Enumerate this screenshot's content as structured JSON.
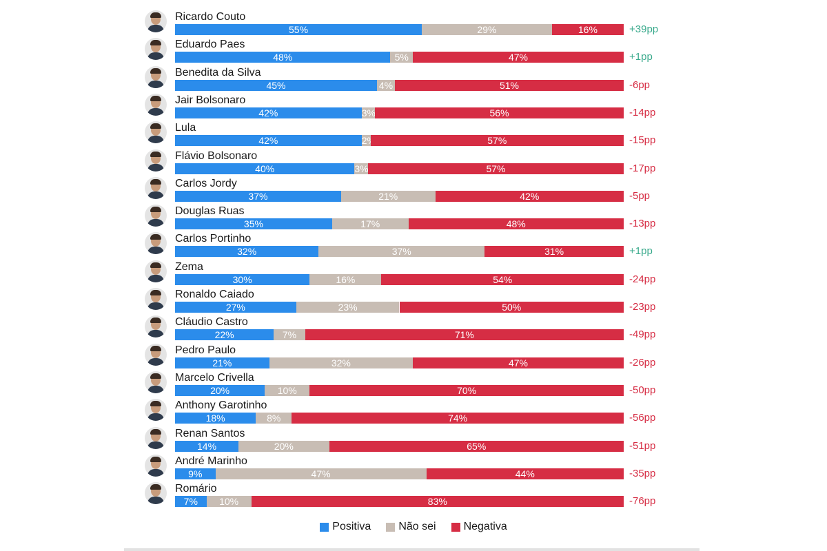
{
  "chart_data": {
    "type": "bar",
    "orientation": "horizontal",
    "stacked": true,
    "series": [
      {
        "name": "Positiva",
        "color": "#2b8ceb"
      },
      {
        "name": "Não sei",
        "color": "#c8bdb4"
      },
      {
        "name": "Negativa",
        "color": "#d62d44"
      }
    ],
    "positive_net_color": "#3aaa8c",
    "negative_net_color": "#d62d44",
    "rows": [
      {
        "name": "Ricardo Couto",
        "pos": 55,
        "neu": 29,
        "neg": 16,
        "net": "+39pp"
      },
      {
        "name": "Eduardo Paes",
        "pos": 48,
        "neu": 5,
        "neg": 47,
        "net": "+1pp"
      },
      {
        "name": "Benedita da Silva",
        "pos": 45,
        "neu": 4,
        "neg": 51,
        "net": "-6pp"
      },
      {
        "name": "Jair Bolsonaro",
        "pos": 42,
        "neu": 3,
        "neg": 56,
        "net": "-14pp"
      },
      {
        "name": "Lula",
        "pos": 42,
        "neu": 2,
        "neg": 57,
        "net": "-15pp"
      },
      {
        "name": "Flávio Bolsonaro",
        "pos": 40,
        "neu": 3,
        "neg": 57,
        "net": "-17pp"
      },
      {
        "name": "Carlos Jordy",
        "pos": 37,
        "neu": 21,
        "neg": 42,
        "net": "-5pp"
      },
      {
        "name": "Douglas Ruas",
        "pos": 35,
        "neu": 17,
        "neg": 48,
        "net": "-13pp"
      },
      {
        "name": "Carlos Portinho",
        "pos": 32,
        "neu": 37,
        "neg": 31,
        "net": "+1pp"
      },
      {
        "name": "Zema",
        "pos": 30,
        "neu": 16,
        "neg": 54,
        "net": "-24pp"
      },
      {
        "name": "Ronaldo Caiado",
        "pos": 27,
        "neu": 23,
        "neg": 50,
        "net": "-23pp"
      },
      {
        "name": "Cláudio Castro",
        "pos": 22,
        "neu": 7,
        "neg": 71,
        "net": "-49pp"
      },
      {
        "name": "Pedro Paulo",
        "pos": 21,
        "neu": 32,
        "neg": 47,
        "net": "-26pp"
      },
      {
        "name": "Marcelo Crivella",
        "pos": 20,
        "neu": 10,
        "neg": 70,
        "net": "-50pp"
      },
      {
        "name": "Anthony Garotinho",
        "pos": 18,
        "neu": 8,
        "neg": 74,
        "net": "-56pp"
      },
      {
        "name": "Renan Santos",
        "pos": 14,
        "neu": 20,
        "neg": 65,
        "net": "-51pp"
      },
      {
        "name": "André Marinho",
        "pos": 9,
        "neu": 47,
        "neg": 44,
        "net": "-35pp"
      },
      {
        "name": "Romário",
        "pos": 7,
        "neu": 10,
        "neg": 83,
        "net": "-76pp"
      }
    ]
  }
}
